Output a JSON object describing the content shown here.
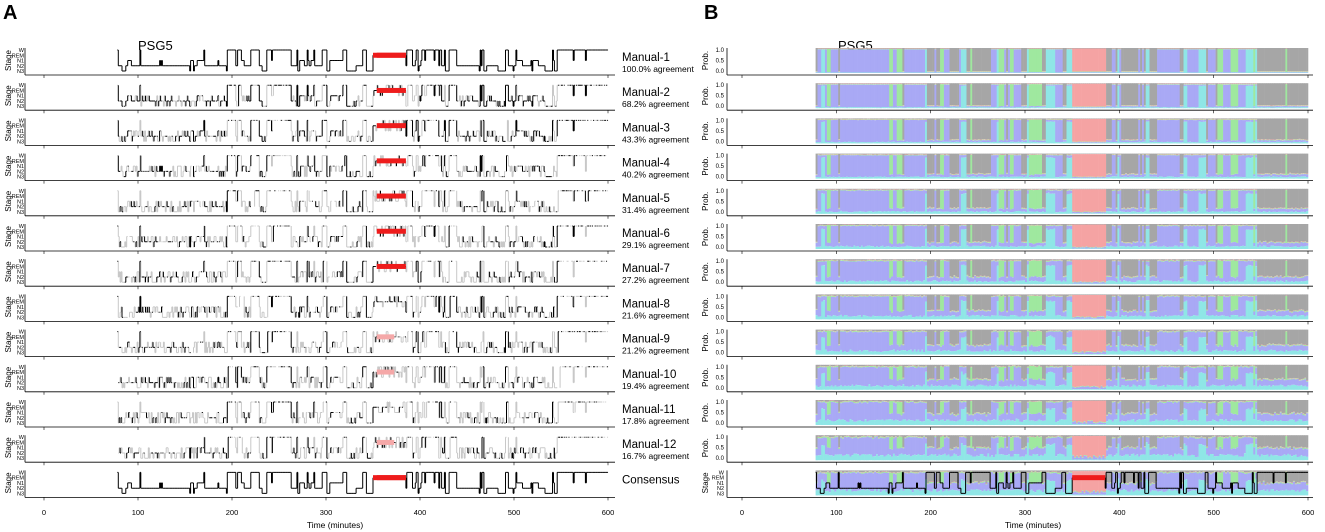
{
  "figure": {
    "panel_a_letter": "A",
    "panel_b_letter": "B",
    "panel_a_recording": "PSG5",
    "panel_b_recording": "PSG5",
    "stage_axis_label": "Stage",
    "prob_axis_label": "Prob.",
    "x_axis_label": "Time (minutes)",
    "x_ticks": [
      "0",
      "100",
      "200",
      "300",
      "400",
      "500",
      "600"
    ],
    "stage_ticks": [
      "W",
      "REM",
      "N1",
      "N2",
      "N3"
    ],
    "prob_ticks": [
      "1.0",
      "0.5",
      "0.0"
    ],
    "colors": {
      "hypnogram_agree": "#000000",
      "hypnogram_disagree": "#c8c8c8",
      "rem_agree": "#ee1c1c",
      "rem_disagree": "#f5a8a8",
      "prob_wake": "#a6a6a6",
      "prob_rem": "#f5a3a3",
      "prob_n1": "#9fe89f",
      "prob_n2": "#a9a9f5",
      "prob_n3": "#8fe6e6"
    }
  },
  "chart_data": [
    {
      "type": "line",
      "panel": "A",
      "title": "PSG5",
      "xlabel": "Time (minutes)",
      "ylabel": "Stage",
      "xlim": [
        0,
        600
      ],
      "x_ticks": [
        0,
        100,
        200,
        300,
        400,
        500,
        600
      ],
      "y_categories": [
        "W",
        "REM",
        "N1",
        "N2",
        "N3"
      ],
      "recording_minutes": [
        78,
        600
      ],
      "rem_period_minutes": [
        350,
        385
      ],
      "series": [
        {
          "name": "Manual-1",
          "agreement_label": "100.0% agreement",
          "agreement": 100.0
        },
        {
          "name": "Manual-2",
          "agreement_label": "68.2% agreement",
          "agreement": 68.2
        },
        {
          "name": "Manual-3",
          "agreement_label": "43.3% agreement",
          "agreement": 43.3
        },
        {
          "name": "Manual-4",
          "agreement_label": "40.2% agreement",
          "agreement": 40.2
        },
        {
          "name": "Manual-5",
          "agreement_label": "31.4% agreement",
          "agreement": 31.4
        },
        {
          "name": "Manual-6",
          "agreement_label": "29.1% agreement",
          "agreement": 29.1
        },
        {
          "name": "Manual-7",
          "agreement_label": "27.2% agreement",
          "agreement": 27.2
        },
        {
          "name": "Manual-8",
          "agreement_label": "21.6% agreement",
          "agreement": 21.6
        },
        {
          "name": "Manual-9",
          "agreement_label": "21.2% agreement",
          "agreement": 21.2
        },
        {
          "name": "Manual-10",
          "agreement_label": "19.4% agreement",
          "agreement": 19.4
        },
        {
          "name": "Manual-11",
          "agreement_label": "17.8% agreement",
          "agreement": 17.8
        },
        {
          "name": "Manual-12",
          "agreement_label": "16.7% agreement",
          "agreement": 16.7
        },
        {
          "name": "Consensus",
          "agreement_label": "",
          "agreement": null
        }
      ]
    },
    {
      "type": "area",
      "panel": "B",
      "title": "PSG5",
      "xlabel": "Time (minutes)",
      "ylabel": "Prob.",
      "xlim": [
        0,
        600
      ],
      "ylim": [
        0,
        1
      ],
      "x_ticks": [
        0,
        100,
        200,
        300,
        400,
        500,
        600
      ],
      "y_ticks": [
        0.0,
        0.5,
        1.0
      ],
      "stack_order": [
        "W",
        "REM",
        "N1",
        "N2",
        "N3"
      ],
      "recording_minutes": [
        78,
        600
      ],
      "rows": 12,
      "last_row": "consensus hypnogram overlaid on probabilities"
    }
  ]
}
